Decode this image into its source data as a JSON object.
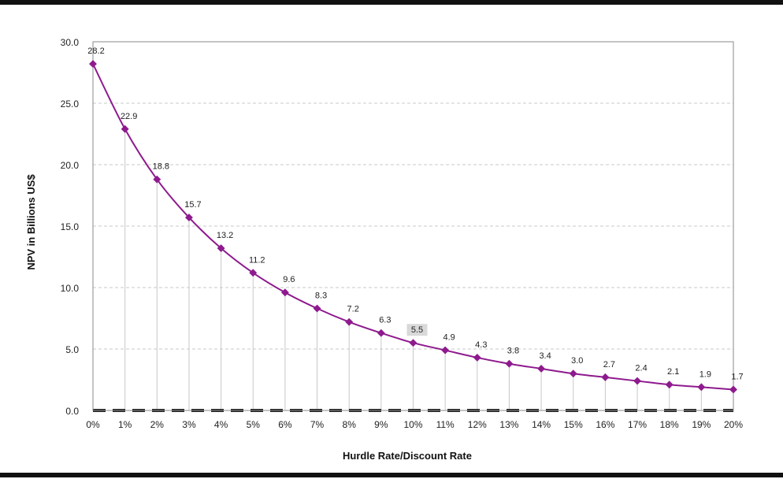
{
  "chart_data": {
    "type": "line",
    "title": "",
    "xlabel": "Hurdle Rate/Discount Rate",
    "ylabel": "NPV in Billions US$",
    "ylim": [
      0,
      30
    ],
    "y_ticks": [
      "0.0",
      "5.0",
      "10.0",
      "15.0",
      "20.0",
      "25.0",
      "30.0"
    ],
    "categories": [
      "0%",
      "1%",
      "2%",
      "3%",
      "4%",
      "5%",
      "6%",
      "7%",
      "8%",
      "9%",
      "10%",
      "11%",
      "12%",
      "13%",
      "14%",
      "15%",
      "16%",
      "17%",
      "18%",
      "19%",
      "20%"
    ],
    "series": [
      {
        "values": [
          28.2,
          22.9,
          18.8,
          15.7,
          13.2,
          11.2,
          9.6,
          8.3,
          7.2,
          6.3,
          5.5,
          4.9,
          4.3,
          3.8,
          3.4,
          3.0,
          2.7,
          2.4,
          2.1,
          1.9,
          1.7
        ],
        "labels": [
          "28.2",
          "22.9",
          "18.8",
          "15.7",
          "13.2",
          "11.2",
          "9.6",
          "8.3",
          "7.2",
          "6.3",
          "5.5",
          "4.9",
          "4.3",
          "3.8",
          "3.4",
          "3.0",
          "2.7",
          "2.4",
          "2.1",
          "1.9",
          "1.7"
        ]
      }
    ],
    "highlighted_label_index": 10,
    "grid": true,
    "drop_lines": true,
    "zero_line_style": "dashed",
    "colors": {
      "series": "#8e1a8e",
      "frame": "#111111",
      "grid": "#c8c8c8",
      "drop_line": "#c8c8c8",
      "zero_line": "#222222",
      "label_highlight": "#d9d9d9"
    }
  }
}
